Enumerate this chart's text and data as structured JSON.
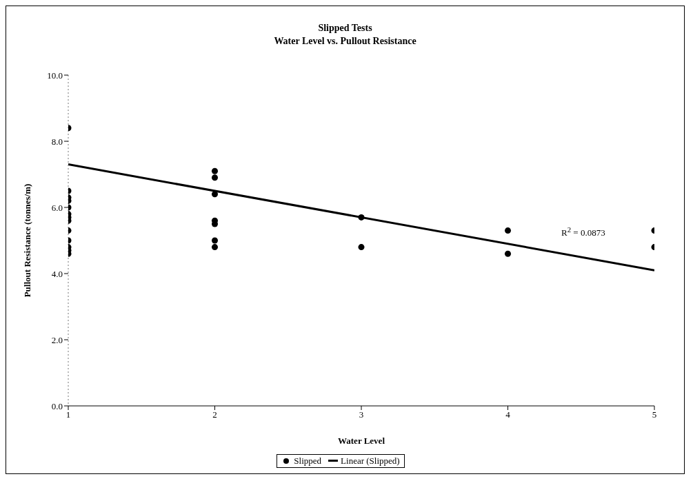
{
  "chart_data": {
    "type": "scatter",
    "title": "Slipped Tests",
    "subtitle": "Water Level vs. Pullout Resistance",
    "xlabel": "Water Level",
    "ylabel": "Pullout Resistance (tonnes/m)",
    "xlim": [
      1,
      5
    ],
    "xticks": [
      1,
      2,
      3,
      4,
      5
    ],
    "ylim": [
      0,
      10
    ],
    "yticks": [
      {
        "value": 0,
        "label": "0.0"
      },
      {
        "value": 2,
        "label": "2.0"
      },
      {
        "value": 4,
        "label": "4.0"
      },
      {
        "value": 6,
        "label": "6.0"
      },
      {
        "value": 8,
        "label": "8.0"
      },
      {
        "value": 10,
        "label": "10.0"
      }
    ],
    "legend": "bottom",
    "series": [
      {
        "name": "Slipped",
        "marker": "circle",
        "color": "#000000",
        "x": [
          1,
          1,
          1,
          1,
          1,
          1,
          1,
          1,
          1,
          1,
          1,
          1,
          1,
          2,
          2,
          2,
          2,
          2,
          2,
          2,
          3,
          3,
          4,
          4,
          5,
          5
        ],
        "values": [
          8.4,
          6.5,
          6.3,
          6.2,
          6.0,
          5.8,
          5.7,
          5.6,
          5.3,
          5.0,
          4.8,
          4.7,
          4.6,
          7.1,
          6.9,
          6.4,
          5.6,
          5.5,
          5.0,
          4.8,
          5.7,
          4.8,
          5.3,
          4.6,
          5.3,
          4.8
        ]
      },
      {
        "name": "Linear (Slipped)",
        "type": "line",
        "marker": "none",
        "color": "#000000",
        "x": [
          1,
          5
        ],
        "values": [
          7.3,
          4.1
        ]
      }
    ],
    "annotations": [
      "R$^{2}$ = 0.0873"
    ]
  }
}
